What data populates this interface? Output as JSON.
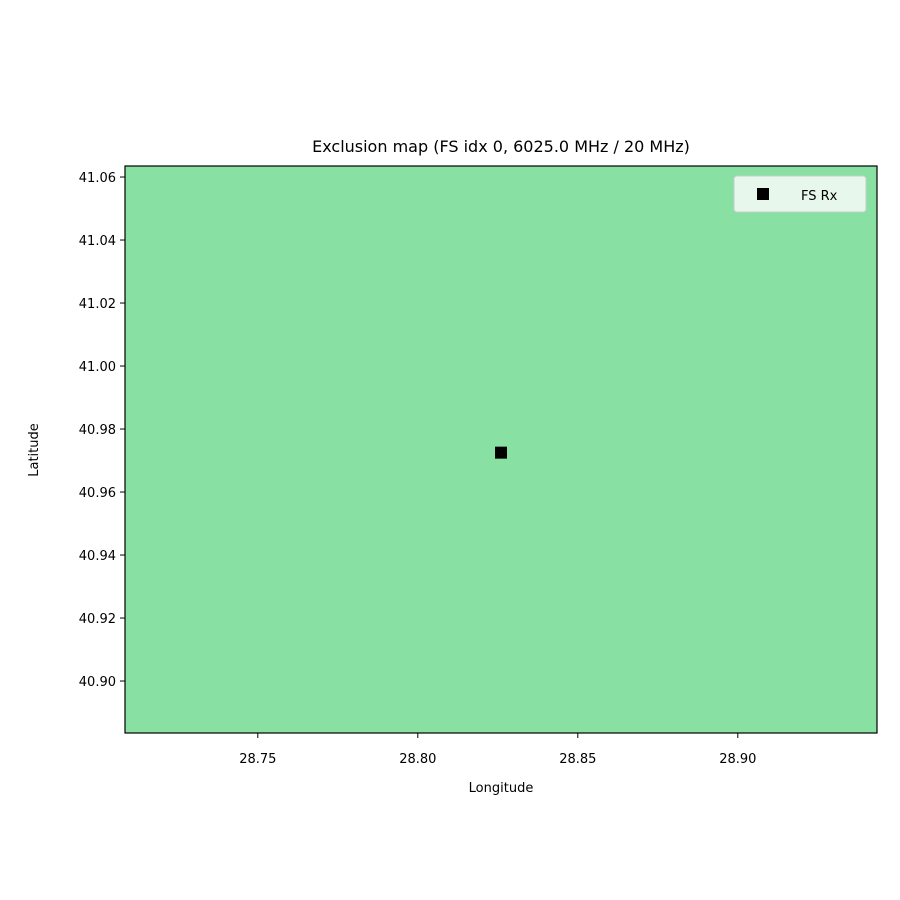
{
  "chart_data": {
    "type": "heatmap",
    "title": "Exclusion map (FS idx 0, 6025.0 MHz / 20 MHz)",
    "xlabel": "Longitude",
    "ylabel": "Latitude",
    "xlim": [
      28.7085,
      28.9435
    ],
    "ylim": [
      40.8835,
      41.0635
    ],
    "x_ticks": [
      "28.75",
      "28.80",
      "28.85",
      "28.90"
    ],
    "x_tick_values": [
      28.75,
      28.8,
      28.85,
      28.9
    ],
    "y_ticks": [
      "40.90",
      "40.92",
      "40.94",
      "40.96",
      "40.98",
      "41.00",
      "41.02",
      "41.04",
      "41.06"
    ],
    "y_tick_values": [
      40.9,
      40.92,
      40.94,
      40.96,
      40.98,
      41.0,
      41.02,
      41.04,
      41.06
    ],
    "fill_color": "#88e0a3",
    "grid": false,
    "legend_position": "top-right",
    "legend": [
      {
        "label": "FS Rx",
        "marker": "square",
        "color": "#000000"
      }
    ],
    "points": [
      {
        "name": "FS Rx",
        "x": 28.826,
        "y": 40.9725
      }
    ]
  }
}
